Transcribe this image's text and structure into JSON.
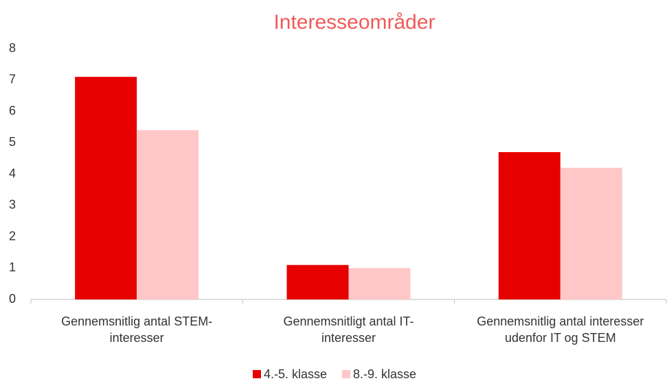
{
  "chart_data": {
    "type": "bar",
    "title": "Interesseområder",
    "categories": [
      "Gennemsnitlig antal STEM-interesser",
      "Gennemsnitligt antal IT-interesser",
      "Gennemsnitlig antal interesser udenfor IT og STEM"
    ],
    "series": [
      {
        "name": "4.-5. klasse",
        "color": "#e60000",
        "values": [
          7.1,
          1.1,
          4.7
        ]
      },
      {
        "name": "8.-9. klasse",
        "color": "#ffc7c7",
        "values": [
          5.4,
          1.0,
          4.2
        ]
      }
    ],
    "ylim": [
      0,
      8
    ],
    "yticks": [
      0,
      1,
      2,
      3,
      4,
      5,
      6,
      7,
      8
    ],
    "grid": false,
    "title_color": "#f05a5a",
    "legend": "bottom"
  }
}
